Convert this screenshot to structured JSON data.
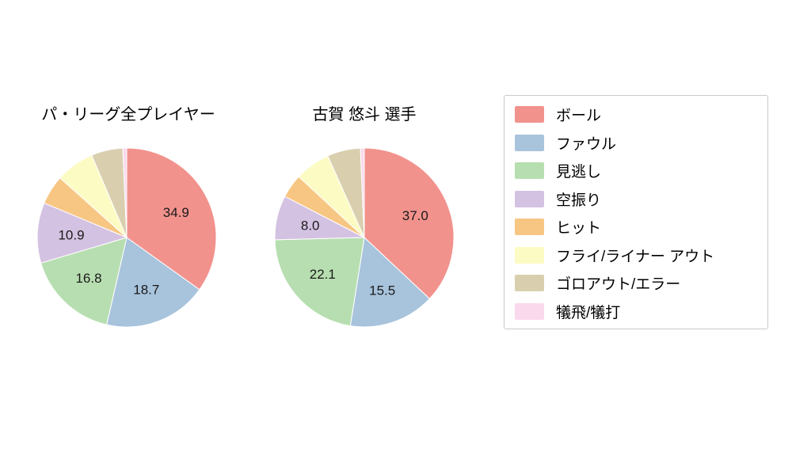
{
  "chart_data": [
    {
      "type": "pie",
      "title": "パ・リーグ全プレイヤー",
      "categories": [
        "ボール",
        "ファウル",
        "見逃し",
        "空振り",
        "ヒット",
        "フライ/ライナー アウト",
        "ゴロアウト/エラー",
        "犠飛/犠打"
      ],
      "values": [
        34.9,
        18.7,
        16.8,
        10.9,
        5.3,
        7.0,
        5.7,
        0.7
      ],
      "slice_labels": [
        "34.9",
        "18.7",
        "16.8",
        "10.9",
        "",
        "",
        "",
        ""
      ],
      "start_angle": "12-oclock",
      "direction": "clockwise",
      "legend_position": "right"
    },
    {
      "type": "pie",
      "title": "古賀 悠斗  選手",
      "categories": [
        "ボール",
        "ファウル",
        "見逃し",
        "空振り",
        "ヒット",
        "フライ/ライナー アウト",
        "ゴロアウト/エラー",
        "犠飛/犠打"
      ],
      "values": [
        37.0,
        15.5,
        22.1,
        8.0,
        4.3,
        6.4,
        6.0,
        0.7
      ],
      "slice_labels": [
        "37.0",
        "15.5",
        "22.1",
        "8.0",
        "",
        "",
        "",
        ""
      ],
      "start_angle": "12-oclock",
      "direction": "clockwise",
      "legend_position": "right"
    }
  ],
  "legend": {
    "items": [
      {
        "label": "ボール",
        "color": "#f2928d"
      },
      {
        "label": "ファウル",
        "color": "#a8c3dc"
      },
      {
        "label": "見逃し",
        "color": "#b7deb0"
      },
      {
        "label": "空振り",
        "color": "#d4c2e2"
      },
      {
        "label": "ヒット",
        "color": "#f7c683"
      },
      {
        "label": "フライ/ライナー アウト",
        "color": "#fcfbc4"
      },
      {
        "label": "ゴロアウト/エラー",
        "color": "#d9cfaf"
      },
      {
        "label": "犠飛/犠打",
        "color": "#fad9ec"
      }
    ]
  }
}
